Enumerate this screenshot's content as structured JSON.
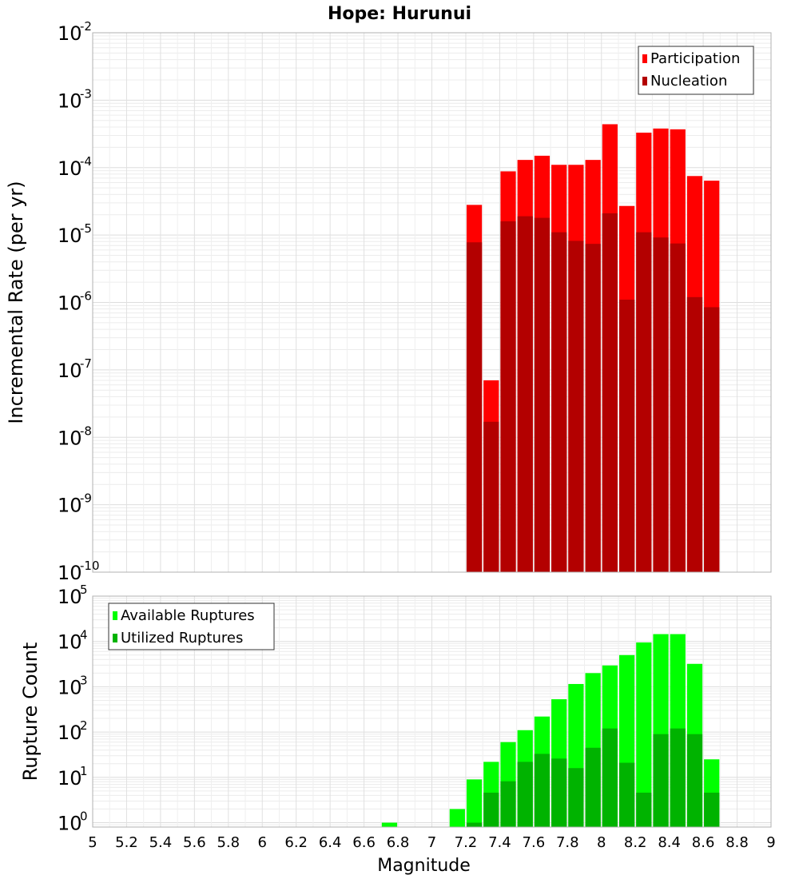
{
  "title": "Hope: Hurunui",
  "chart_data": [
    {
      "type": "bar",
      "title": "Hope: Hurunui",
      "ylabel": "Incremental Rate (per yr)",
      "xlabel": "",
      "yscale": "log",
      "ylim": [
        1e-10,
        0.01
      ],
      "xlim": [
        5,
        9
      ],
      "legend_position": "top-right",
      "grid": true,
      "y_tick_base": "10",
      "y_tick_exponents": [
        "-10",
        "-9",
        "-8",
        "-7",
        "-6",
        "-5",
        "-4",
        "-3",
        "-2"
      ],
      "x": [
        7.25,
        7.35,
        7.45,
        7.55,
        7.65,
        7.75,
        7.85,
        7.95,
        8.05,
        8.15,
        8.25,
        8.35,
        8.45,
        8.55,
        8.65
      ],
      "series": [
        {
          "name": "Participation",
          "color": "#ff0000",
          "values": [
            2.8e-05,
            7e-08,
            8.8e-05,
            0.00013,
            0.00015,
            0.00011,
            0.00011,
            0.00013,
            0.00044,
            2.7e-05,
            0.00033,
            0.00038,
            0.00037,
            7.5e-05,
            6.4e-05
          ]
        },
        {
          "name": "Nucleation",
          "color": "#b30000",
          "values": [
            7.8e-06,
            1.7e-08,
            1.6e-05,
            1.9e-05,
            1.8e-05,
            1.1e-05,
            8.2e-06,
            7.4e-06,
            2.1e-05,
            1.1e-06,
            1.1e-05,
            9.2e-06,
            7.5e-06,
            1.2e-06,
            8.5e-07
          ]
        }
      ]
    },
    {
      "type": "bar",
      "title": "",
      "ylabel": "Rupture Count",
      "xlabel": "Magnitude",
      "yscale": "log",
      "ylim": [
        0.8,
        100000
      ],
      "xlim": [
        5,
        9
      ],
      "legend_position": "top-left",
      "grid": true,
      "y_tick_base": "10",
      "y_tick_exponents": [
        "0",
        "1",
        "2",
        "3",
        "4",
        "5"
      ],
      "x_ticks": [
        "5",
        "5.2",
        "5.4",
        "5.6",
        "5.8",
        "6",
        "6.2",
        "6.4",
        "6.6",
        "6.8",
        "7",
        "7.2",
        "7.4",
        "7.6",
        "7.8",
        "8",
        "8.2",
        "8.4",
        "8.6",
        "8.8",
        "9"
      ],
      "x": [
        6.75,
        7.15,
        7.25,
        7.35,
        7.45,
        7.55,
        7.65,
        7.75,
        7.85,
        7.95,
        8.05,
        8.15,
        8.25,
        8.35,
        8.45,
        8.55,
        8.65
      ],
      "series": [
        {
          "name": "Available Ruptures",
          "color": "#00ff00",
          "values": [
            1,
            2,
            9,
            22,
            60,
            110,
            220,
            530,
            1150,
            2000,
            2950,
            5000,
            9500,
            14500,
            14500,
            3200,
            25
          ]
        },
        {
          "name": "Utilized Ruptures",
          "color": "#00b300",
          "values": [
            0,
            0,
            1,
            4.6,
            8.2,
            22,
            33,
            26,
            16,
            45,
            120,
            21,
            4.6,
            90,
            120,
            90,
            4.6
          ]
        }
      ]
    }
  ]
}
